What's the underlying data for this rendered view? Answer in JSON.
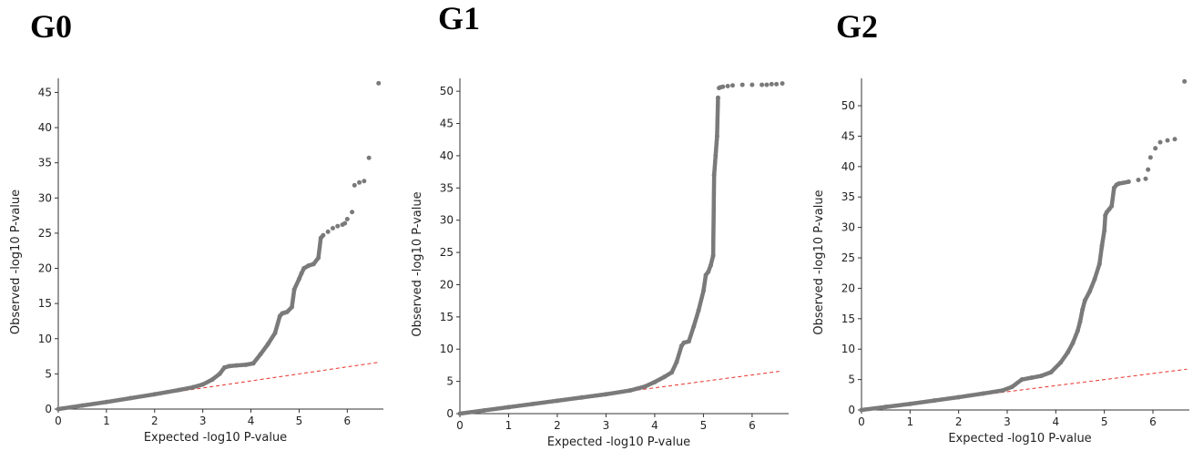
{
  "chart_data": [
    {
      "type": "scatter",
      "title": "G0",
      "xlabel": "Expected -log10 P-value",
      "ylabel": "Observed -log10 P-value",
      "xlim": [
        0,
        6.75
      ],
      "ylim": [
        0,
        47
      ],
      "xticks": [
        0,
        1,
        2,
        3,
        4,
        5,
        6
      ],
      "yticks": [
        0,
        5,
        10,
        15,
        20,
        25,
        30,
        35,
        40,
        45
      ],
      "grid": false,
      "reference_line": {
        "style": "dashed",
        "color": "#e8322a",
        "x": [
          0,
          6.65
        ],
        "y": [
          0,
          6.65
        ]
      },
      "point_color": "#7a7a7a",
      "series": [
        {
          "x": [
            0,
            0.5,
            1,
            1.5,
            2,
            2.5,
            2.8,
            3,
            3.2,
            3.35,
            3.45,
            3.55,
            3.7,
            3.9,
            4.05,
            4.2,
            4.35,
            4.5,
            4.6,
            4.65,
            4.7,
            4.75,
            4.85,
            4.9,
            5.0,
            5.05,
            5.1,
            5.2,
            5.3,
            5.4,
            5.45,
            5.5,
            5.6,
            5.7,
            5.8,
            5.9,
            5.95,
            6.0,
            6.1,
            6.15,
            6.25,
            6.35,
            6.45,
            6.65
          ],
          "y": [
            0,
            0.5,
            1,
            1.55,
            2.1,
            2.7,
            3.1,
            3.5,
            4.2,
            5.0,
            5.9,
            6.1,
            6.2,
            6.3,
            6.5,
            7.8,
            9.2,
            10.8,
            13.2,
            13.6,
            13.7,
            13.8,
            14.5,
            17.0,
            18.5,
            19.3,
            20.0,
            20.4,
            20.6,
            21.5,
            24.3,
            24.7,
            25.2,
            25.7,
            26.0,
            26.2,
            26.4,
            27.0,
            28.0,
            31.8,
            32.2,
            32.4,
            35.7,
            46.3
          ]
        }
      ]
    },
    {
      "type": "scatter",
      "title": "G1",
      "xlabel": "Expected -log10 P-value",
      "ylabel": "Observed -log10 P-value",
      "xlim": [
        0,
        6.75
      ],
      "ylim": [
        0,
        52
      ],
      "xticks": [
        0,
        1,
        2,
        3,
        4,
        5,
        6
      ],
      "yticks": [
        0,
        5,
        10,
        15,
        20,
        25,
        30,
        35,
        40,
        45,
        50
      ],
      "grid": false,
      "reference_line": {
        "style": "dashed",
        "color": "#e8322a",
        "x": [
          0,
          6.6
        ],
        "y": [
          0,
          6.6
        ]
      },
      "point_color": "#7a7a7a",
      "series": [
        {
          "x": [
            0,
            0.5,
            1,
            1.5,
            2,
            2.5,
            3,
            3.5,
            3.8,
            4.0,
            4.2,
            4.35,
            4.45,
            4.55,
            4.6,
            4.7,
            4.8,
            4.9,
            5.0,
            5.05,
            5.1,
            5.15,
            5.2,
            5.22,
            5.25,
            5.28,
            5.3,
            5.32,
            5.35,
            5.4,
            5.5,
            5.6,
            5.8,
            6.0,
            6.2,
            6.3,
            6.4,
            6.5,
            6.62
          ],
          "y": [
            0,
            0.5,
            1,
            1.5,
            2,
            2.5,
            3,
            3.6,
            4.2,
            4.9,
            5.7,
            6.4,
            8.0,
            10.5,
            11.0,
            11.2,
            13.5,
            16.0,
            19.0,
            21.5,
            22.0,
            23.0,
            24.5,
            37.0,
            40.0,
            43.0,
            49.0,
            50.5,
            50.6,
            50.7,
            50.8,
            50.9,
            51.0,
            51.0,
            51.0,
            51.0,
            51.1,
            51.1,
            51.2
          ]
        }
      ]
    },
    {
      "type": "scatter",
      "title": "G2",
      "xlabel": "Expected -log10 P-value",
      "ylabel": "Observed -log10 P-value",
      "xlim": [
        0,
        6.75
      ],
      "ylim": [
        0,
        54.5
      ],
      "xticks": [
        0,
        1,
        2,
        3,
        4,
        5,
        6
      ],
      "yticks": [
        0,
        5,
        10,
        15,
        20,
        25,
        30,
        35,
        40,
        45,
        50
      ],
      "grid": false,
      "reference_line": {
        "style": "dashed",
        "color": "#e8322a",
        "x": [
          0,
          6.7
        ],
        "y": [
          0,
          6.7
        ]
      },
      "point_color": "#7a7a7a",
      "series": [
        {
          "x": [
            0,
            0.5,
            1,
            1.5,
            2,
            2.5,
            2.9,
            3.1,
            3.3,
            3.5,
            3.7,
            3.9,
            4.1,
            4.25,
            4.35,
            4.45,
            4.5,
            4.55,
            4.6,
            4.7,
            4.8,
            4.9,
            4.95,
            5.0,
            5.02,
            5.05,
            5.1,
            5.15,
            5.2,
            5.25,
            5.3,
            5.5,
            5.7,
            5.85,
            5.9,
            5.95,
            6.05,
            6.15,
            6.3,
            6.45,
            6.65
          ],
          "y": [
            0,
            0.5,
            1,
            1.55,
            2.1,
            2.7,
            3.2,
            3.8,
            5.0,
            5.3,
            5.6,
            6.2,
            7.8,
            9.5,
            11.0,
            13.0,
            14.5,
            16.5,
            18.0,
            19.5,
            21.5,
            24.0,
            27.0,
            29.5,
            32.0,
            32.5,
            33.0,
            33.5,
            36.5,
            37.0,
            37.2,
            37.5,
            37.8,
            38.0,
            39.5,
            41.5,
            43.0,
            44.0,
            44.3,
            44.5,
            54.0
          ]
        }
      ]
    }
  ]
}
